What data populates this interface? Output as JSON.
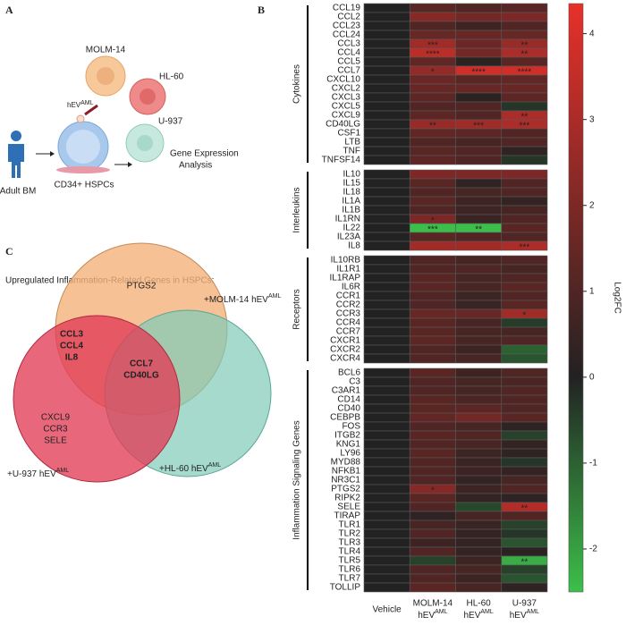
{
  "panel_a": {
    "label": "A",
    "cells": [
      "MOLM-14",
      "HL-60",
      "U-937"
    ],
    "ev": {
      "text": "hEV",
      "sup": "AML"
    },
    "donor": "Adult BM",
    "dish": "CD34+ HSPCs",
    "output": [
      "Gene Expression",
      "Analysis"
    ]
  },
  "chart_data": {
    "type": "heatmap",
    "label": "B",
    "columns": [
      {
        "name": "Vehicle"
      },
      {
        "name": "MOLM-14",
        "ev": "hEV",
        "sup": "AML"
      },
      {
        "name": "HL-60",
        "ev": "hEV",
        "sup": "AML"
      },
      {
        "name": "U-937",
        "ev": "hEV",
        "sup": "AML"
      }
    ],
    "clim": [
      -2.5,
      4.35
    ],
    "cticks": [
      -2,
      -1,
      0,
      1,
      2,
      3,
      4
    ],
    "colorbar_label": "Log2FC",
    "colors": {
      "low": "#3cbf4a",
      "zero": "#222222",
      "high": "#e8302a"
    },
    "groups": [
      {
        "name": "Cytokines",
        "rows": [
          "CCL19",
          "CCL2",
          "CCL23",
          "CCL24",
          "CCL3",
          "CCL4",
          "CCL5",
          "CCL7",
          "CXCL10",
          "CXCL2",
          "CXCL3",
          "CXCL5",
          "CXCL9",
          "CD40LG",
          "CSF1",
          "LTB",
          "TNF",
          "TNFSF14"
        ],
        "values": [
          [
            0,
            1.2,
            1.0,
            1.2
          ],
          [
            0,
            2.2,
            1.8,
            2.0
          ],
          [
            0,
            1.0,
            0.6,
            1.0
          ],
          [
            0,
            1.5,
            1.5,
            1.5
          ],
          [
            0,
            2.8,
            1.6,
            2.6
          ],
          [
            0,
            3.4,
            1.8,
            3.0
          ],
          [
            0,
            1.4,
            0.2,
            1.2
          ],
          [
            0,
            2.5,
            3.8,
            3.8
          ],
          [
            0,
            1.6,
            1.2,
            1.4
          ],
          [
            0,
            1.5,
            1.5,
            1.5
          ],
          [
            0,
            1.3,
            0.2,
            1.3
          ],
          [
            0,
            1.0,
            1.0,
            -0.3
          ],
          [
            0,
            1.3,
            1.0,
            3.0
          ],
          [
            0,
            2.6,
            2.8,
            3.0
          ],
          [
            0,
            1.4,
            1.3,
            1.0
          ],
          [
            0,
            1.0,
            0.8,
            1.0
          ],
          [
            0,
            1.2,
            1.0,
            0.3
          ],
          [
            0,
            1.3,
            1.0,
            -0.3
          ]
        ],
        "stars": [
          {
            "row": 4,
            "col": 1,
            "text": "***"
          },
          {
            "row": 4,
            "col": 3,
            "text": "**"
          },
          {
            "row": 5,
            "col": 1,
            "text": "****"
          },
          {
            "row": 5,
            "col": 3,
            "text": "**"
          },
          {
            "row": 7,
            "col": 1,
            "text": "*"
          },
          {
            "row": 7,
            "col": 2,
            "text": "****"
          },
          {
            "row": 7,
            "col": 3,
            "text": "****"
          },
          {
            "row": 12,
            "col": 3,
            "text": "**"
          },
          {
            "row": 13,
            "col": 1,
            "text": "**"
          },
          {
            "row": 13,
            "col": 2,
            "text": "***"
          },
          {
            "row": 13,
            "col": 3,
            "text": "***"
          }
        ]
      },
      {
        "name": "Interleukins",
        "rows": [
          "IL10",
          "IL15",
          "IL18",
          "IL1A",
          "IL1B",
          "IL1RN",
          "IL22",
          "IL23A",
          "IL8"
        ],
        "values": [
          [
            0,
            2.0,
            2.0,
            2.0
          ],
          [
            0,
            1.2,
            0.3,
            1.0
          ],
          [
            0,
            1.0,
            0.8,
            1.0
          ],
          [
            0,
            1.2,
            0.6,
            0.4
          ],
          [
            0,
            1.0,
            0.6,
            0.8
          ],
          [
            0,
            2.0,
            0.5,
            1.0
          ],
          [
            0,
            -2.5,
            -2.5,
            1.2
          ],
          [
            0,
            1.2,
            1.0,
            1.0
          ],
          [
            0,
            2.8,
            2.8,
            3.0
          ]
        ],
        "stars": [
          {
            "row": 5,
            "col": 1,
            "text": "*"
          },
          {
            "row": 6,
            "col": 1,
            "text": "***"
          },
          {
            "row": 6,
            "col": 2,
            "text": "**"
          },
          {
            "row": 8,
            "col": 3,
            "text": "***"
          }
        ]
      },
      {
        "name": "Receptors",
        "rows": [
          "IL10RB",
          "IL1R1",
          "IL1RAP",
          "IL6R",
          "CCR1",
          "CCR2",
          "CCR3",
          "CCR4",
          "CCR7",
          "CXCR1",
          "CXCR2",
          "CXCR4"
        ],
        "values": [
          [
            0,
            1.0,
            0.8,
            1.0
          ],
          [
            0,
            1.0,
            1.0,
            0.8
          ],
          [
            0,
            1.2,
            0.8,
            1.0
          ],
          [
            0,
            1.2,
            0.8,
            1.2
          ],
          [
            0,
            1.0,
            0.6,
            1.0
          ],
          [
            0,
            1.0,
            0.5,
            1.2
          ],
          [
            0,
            1.5,
            1.5,
            2.8
          ],
          [
            0,
            1.2,
            0.8,
            -0.4
          ],
          [
            0,
            1.2,
            0.8,
            0.8
          ],
          [
            0,
            1.3,
            0.8,
            1.0
          ],
          [
            0,
            1.0,
            0.6,
            -1.0
          ],
          [
            0,
            1.0,
            0.8,
            -0.8
          ]
        ],
        "stars": [
          {
            "row": 6,
            "col": 3,
            "text": "*"
          }
        ]
      },
      {
        "name": "Inflammation Signaling Genes",
        "rows": [
          "BCL6",
          "C3",
          "C3AR1",
          "CD14",
          "CD40",
          "CEBPB",
          "FOS",
          "ITGB2",
          "KNG1",
          "LY96",
          "MYD88",
          "NFKB1",
          "NR3C1",
          "PTGS2",
          "RIPK2",
          "SELE",
          "TIRAP",
          "TLR1",
          "TLR2",
          "TLR3",
          "TLR4",
          "TLR5",
          "TLR6",
          "TLR7",
          "TOLLIP"
        ],
        "values": [
          [
            0,
            1.2,
            0.6,
            1.0
          ],
          [
            0,
            1.0,
            0.8,
            0.9
          ],
          [
            0,
            1.0,
            0.8,
            1.0
          ],
          [
            0,
            1.2,
            0.9,
            1.0
          ],
          [
            0,
            1.2,
            1.3,
            1.0
          ],
          [
            0,
            1.4,
            1.8,
            1.2
          ],
          [
            0,
            1.0,
            0.8,
            0.3
          ],
          [
            0,
            1.2,
            1.0,
            -0.5
          ],
          [
            0,
            1.0,
            0.8,
            0.4
          ],
          [
            0,
            1.2,
            0.6,
            0.3
          ],
          [
            0,
            1.0,
            0.5,
            -0.3
          ],
          [
            0,
            1.0,
            0.6,
            0.4
          ],
          [
            0,
            1.0,
            0.4,
            0.8
          ],
          [
            0,
            2.2,
            0.6,
            1.0
          ],
          [
            0,
            1.2,
            0.4,
            0.3
          ],
          [
            0,
            1.0,
            -0.6,
            3.2
          ],
          [
            0,
            0.3,
            0.8,
            1.0
          ],
          [
            0,
            0.8,
            0.5,
            -0.5
          ],
          [
            0,
            1.0,
            0.4,
            -0.3
          ],
          [
            0,
            0.6,
            0.4,
            -0.8
          ],
          [
            0,
            1.0,
            0.4,
            0.2
          ],
          [
            0,
            -0.5,
            0.6,
            -2.2
          ],
          [
            0,
            1.0,
            0.8,
            -0.5
          ],
          [
            0,
            1.0,
            0.6,
            -0.8
          ],
          [
            0,
            1.2,
            0.8,
            0.3
          ]
        ],
        "stars": [
          {
            "row": 13,
            "col": 1,
            "text": "*"
          },
          {
            "row": 15,
            "col": 3,
            "text": "**"
          },
          {
            "row": 21,
            "col": 3,
            "text": "**"
          }
        ]
      }
    ]
  },
  "panel_c": {
    "label": "C",
    "title": "Upregulated Inflammation-Related Genes in HSPCs:",
    "sets": [
      {
        "text": "+MOLM-14 hEV",
        "sup": "AML"
      },
      {
        "text": "+U-937 hEV",
        "sup": "AML"
      },
      {
        "text": "+HL-60 hEV",
        "sup": "AML"
      }
    ],
    "regions": [
      {
        "genes": [
          "PTGS2"
        ]
      },
      {
        "genes": [
          "CCL3",
          "CCL4",
          "IL8"
        ]
      },
      {
        "genes": [
          "CCL7",
          "CD40LG"
        ]
      },
      {
        "genes": [
          "CXCL9",
          "CCR3",
          "SELE"
        ]
      }
    ]
  }
}
